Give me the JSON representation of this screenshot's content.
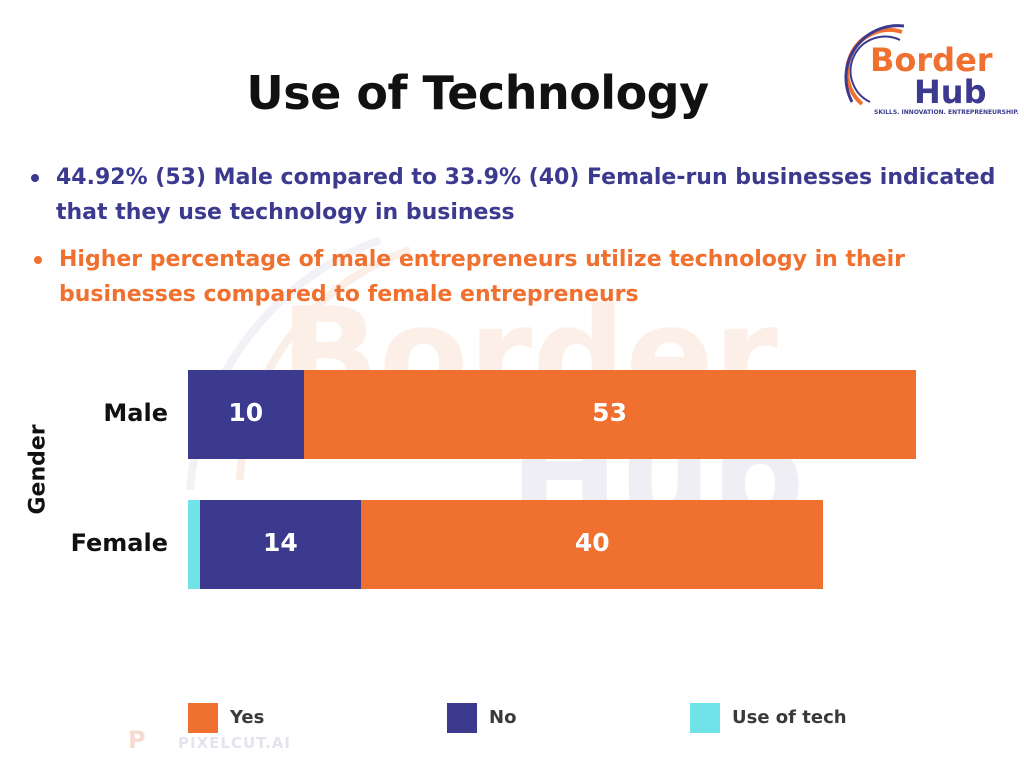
{
  "title": "Use of Technology",
  "logo": {
    "word1": "Border",
    "word2": "Hub",
    "tagline": "SKILLS. INNOVATION. ENTREPRENEURSHIP."
  },
  "bullets": [
    "44.92% (53) Male compared to 33.9% (40) Female-run businesses indicated that they use technology in business",
    "Higher percentage of male entrepreneurs utilize technology in their businesses compared to female entrepreneurs"
  ],
  "watermark_text": {
    "word1": "Border",
    "word2": "Hub",
    "brand": "PIXELCUT.AI"
  },
  "chart_data": {
    "type": "bar",
    "orientation": "horizontal",
    "stacked": true,
    "ylabel": "Gender",
    "categories": [
      "Male",
      "Female"
    ],
    "series": [
      {
        "name": "Use of tech",
        "values": [
          0,
          1
        ],
        "color": "#6fe3e8"
      },
      {
        "name": "No",
        "values": [
          10,
          14
        ],
        "color": "#3b3a8f"
      },
      {
        "name": "Yes",
        "values": [
          53,
          40
        ],
        "color": "#f07030"
      }
    ],
    "legend": [
      {
        "name": "Yes",
        "color": "#f07030"
      },
      {
        "name": "No",
        "color": "#3b3a8f"
      },
      {
        "name": "Use of tech",
        "color": "#6fe3e8"
      }
    ],
    "legend_position": "bottom",
    "grid": false
  }
}
